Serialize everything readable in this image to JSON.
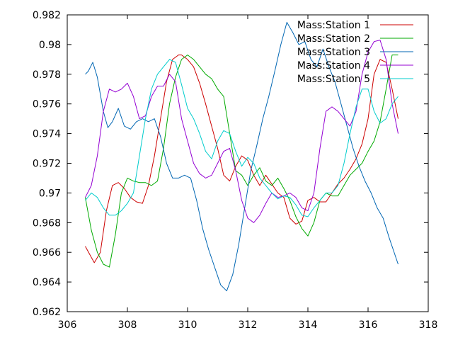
{
  "chart_data": {
    "type": "line",
    "title": "",
    "xlabel": "",
    "ylabel": "",
    "xlim": [
      306,
      318
    ],
    "ylim": [
      0.962,
      0.982
    ],
    "xticks": [
      "306",
      "308",
      "310",
      "312",
      "314",
      "316",
      "318"
    ],
    "yticks": [
      "0.962",
      "0.964",
      "0.966",
      "0.968",
      "0.97",
      "0.972",
      "0.974",
      "0.976",
      "0.978",
      "0.98",
      "0.982"
    ],
    "grid": false,
    "legend_position": "top-right",
    "series": [
      {
        "name": "Mass:Station 1",
        "color": "#cc0000",
        "x": [
          306.6,
          306.9,
          307.1,
          307.3,
          307.5,
          307.7,
          307.9,
          308.1,
          308.3,
          308.5,
          308.7,
          308.9,
          309.1,
          309.3,
          309.5,
          309.7,
          309.8,
          310.0,
          310.2,
          310.4,
          310.6,
          310.8,
          311.0,
          311.2,
          311.4,
          311.6,
          311.8,
          312.0,
          312.2,
          312.4,
          312.6,
          312.8,
          313.0,
          313.2,
          313.4,
          313.6,
          313.8,
          314.0,
          314.2,
          314.4,
          314.6,
          314.8,
          315.0,
          315.2,
          315.4,
          315.6,
          315.8,
          316.0,
          316.2,
          316.4,
          316.6,
          316.8,
          317.0
        ],
        "values": [
          0.9664,
          0.9653,
          0.966,
          0.9688,
          0.9705,
          0.9707,
          0.9703,
          0.9697,
          0.9694,
          0.9693,
          0.9705,
          0.9725,
          0.975,
          0.9775,
          0.979,
          0.9793,
          0.9793,
          0.979,
          0.9785,
          0.9774,
          0.976,
          0.9745,
          0.973,
          0.9712,
          0.9708,
          0.9718,
          0.9725,
          0.9722,
          0.9712,
          0.9705,
          0.9712,
          0.9706,
          0.97,
          0.9697,
          0.9683,
          0.9679,
          0.9681,
          0.9695,
          0.9697,
          0.9694,
          0.9694,
          0.97,
          0.9706,
          0.971,
          0.9716,
          0.9723,
          0.9733,
          0.975,
          0.978,
          0.979,
          0.9788,
          0.977,
          0.975
        ]
      },
      {
        "name": "Mass:Station 2",
        "color": "#00aa00",
        "x": [
          306.6,
          306.8,
          307.0,
          307.2,
          307.4,
          307.6,
          307.8,
          308.0,
          308.2,
          308.4,
          308.6,
          308.8,
          309.0,
          309.2,
          309.4,
          309.6,
          309.8,
          310.0,
          310.2,
          310.4,
          310.6,
          310.8,
          311.0,
          311.2,
          311.4,
          311.6,
          311.8,
          312.0,
          312.2,
          312.4,
          312.6,
          312.8,
          313.0,
          313.2,
          313.4,
          313.6,
          313.8,
          314.0,
          314.2,
          314.4,
          314.6,
          314.8,
          315.0,
          315.2,
          315.4,
          315.6,
          315.8,
          316.0,
          316.2,
          316.4,
          316.6,
          316.8,
          317.0
        ],
        "values": [
          0.9697,
          0.9675,
          0.966,
          0.9652,
          0.965,
          0.9672,
          0.97,
          0.971,
          0.9708,
          0.9707,
          0.9707,
          0.9705,
          0.9708,
          0.973,
          0.976,
          0.9778,
          0.979,
          0.9793,
          0.979,
          0.9785,
          0.978,
          0.9777,
          0.977,
          0.9765,
          0.974,
          0.9715,
          0.9712,
          0.9705,
          0.9712,
          0.9717,
          0.9708,
          0.9705,
          0.971,
          0.9703,
          0.9695,
          0.9684,
          0.9676,
          0.9671,
          0.968,
          0.9695,
          0.97,
          0.9698,
          0.9698,
          0.9705,
          0.9712,
          0.9716,
          0.972,
          0.9728,
          0.9735,
          0.9748,
          0.977,
          0.9793,
          0.9793
        ]
      },
      {
        "name": "Mass:Station 3",
        "color": "#0066b3",
        "x": [
          306.6,
          306.7,
          306.85,
          307.0,
          307.2,
          307.35,
          307.5,
          307.7,
          307.9,
          308.1,
          308.3,
          308.5,
          308.7,
          308.9,
          309.1,
          309.3,
          309.5,
          309.7,
          309.9,
          310.1,
          310.3,
          310.5,
          310.7,
          310.9,
          311.1,
          311.3,
          311.5,
          311.7,
          311.9,
          312.1,
          312.3,
          312.5,
          312.7,
          312.9,
          313.1,
          313.3,
          313.5,
          313.7,
          313.9,
          314.1,
          314.3,
          314.5,
          314.7,
          314.9,
          315.1,
          315.3,
          315.5,
          315.7,
          315.9,
          316.1,
          316.3,
          316.5,
          316.7,
          316.9,
          317.0
        ],
        "values": [
          0.978,
          0.9782,
          0.9788,
          0.9778,
          0.9755,
          0.9744,
          0.9748,
          0.9757,
          0.9745,
          0.9743,
          0.9748,
          0.975,
          0.9748,
          0.975,
          0.9738,
          0.972,
          0.971,
          0.971,
          0.9712,
          0.971,
          0.9695,
          0.9676,
          0.9662,
          0.965,
          0.9638,
          0.9634,
          0.9645,
          0.9665,
          0.969,
          0.9715,
          0.9732,
          0.975,
          0.9765,
          0.9782,
          0.98,
          0.9815,
          0.9808,
          0.98,
          0.9802,
          0.979,
          0.9785,
          0.9797,
          0.9785,
          0.9775,
          0.976,
          0.9745,
          0.973,
          0.9718,
          0.9708,
          0.97,
          0.969,
          0.9683,
          0.967,
          0.9658,
          0.9652
        ]
      },
      {
        "name": "Mass:Station 4",
        "color": "#9400d3",
        "x": [
          306.6,
          306.8,
          307.0,
          307.2,
          307.4,
          307.6,
          307.8,
          308.0,
          308.2,
          308.4,
          308.6,
          308.8,
          309.0,
          309.2,
          309.4,
          309.6,
          309.8,
          310.0,
          310.2,
          310.4,
          310.6,
          310.8,
          311.0,
          311.2,
          311.4,
          311.6,
          311.8,
          312.0,
          312.2,
          312.4,
          312.6,
          312.8,
          313.0,
          313.2,
          313.4,
          313.6,
          313.8,
          314.0,
          314.2,
          314.4,
          314.6,
          314.8,
          315.0,
          315.2,
          315.4,
          315.6,
          315.8,
          316.0,
          316.2,
          316.4,
          316.6,
          316.8,
          317.0
        ],
        "values": [
          0.9697,
          0.9705,
          0.9725,
          0.9755,
          0.977,
          0.9768,
          0.977,
          0.9774,
          0.9765,
          0.975,
          0.9752,
          0.9765,
          0.9772,
          0.9772,
          0.978,
          0.9775,
          0.975,
          0.9735,
          0.972,
          0.9713,
          0.971,
          0.9712,
          0.972,
          0.9728,
          0.973,
          0.9715,
          0.9695,
          0.9683,
          0.968,
          0.9685,
          0.9693,
          0.97,
          0.9697,
          0.9698,
          0.97,
          0.9697,
          0.969,
          0.9688,
          0.97,
          0.973,
          0.9755,
          0.9758,
          0.9755,
          0.975,
          0.9745,
          0.9755,
          0.978,
          0.9795,
          0.9802,
          0.9803,
          0.979,
          0.976,
          0.974
        ]
      },
      {
        "name": "Mass:Station 5",
        "color": "#00cccc",
        "x": [
          306.6,
          306.8,
          307.0,
          307.2,
          307.4,
          307.6,
          307.8,
          308.0,
          308.2,
          308.4,
          308.6,
          308.8,
          309.0,
          309.2,
          309.4,
          309.6,
          309.8,
          310.0,
          310.2,
          310.4,
          310.6,
          310.8,
          311.0,
          311.2,
          311.4,
          311.6,
          311.8,
          312.0,
          312.2,
          312.4,
          312.6,
          312.8,
          313.0,
          313.2,
          313.4,
          313.6,
          313.8,
          314.0,
          314.2,
          314.4,
          314.6,
          314.8,
          315.0,
          315.2,
          315.4,
          315.6,
          315.8,
          316.0,
          316.2,
          316.4,
          316.6,
          316.8,
          317.0
        ],
        "values": [
          0.9695,
          0.97,
          0.9697,
          0.969,
          0.9685,
          0.9685,
          0.9688,
          0.9693,
          0.97,
          0.9725,
          0.975,
          0.977,
          0.978,
          0.9785,
          0.979,
          0.9788,
          0.9773,
          0.9757,
          0.975,
          0.974,
          0.9728,
          0.9723,
          0.9735,
          0.9742,
          0.974,
          0.9728,
          0.9718,
          0.9724,
          0.972,
          0.971,
          0.9705,
          0.97,
          0.9696,
          0.9698,
          0.9697,
          0.9692,
          0.9685,
          0.9684,
          0.969,
          0.9695,
          0.97,
          0.97,
          0.9705,
          0.972,
          0.974,
          0.9758,
          0.977,
          0.977,
          0.9755,
          0.9747,
          0.975,
          0.976,
          0.9765
        ]
      }
    ]
  }
}
